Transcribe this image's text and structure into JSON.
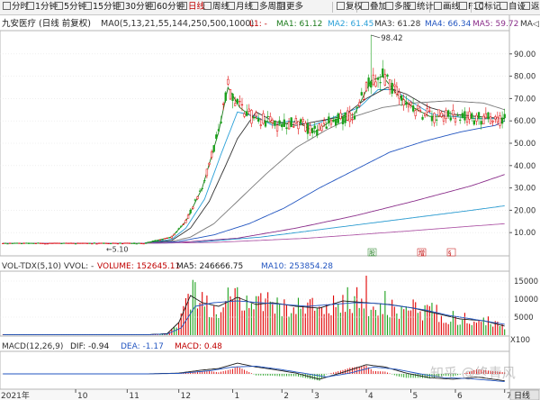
{
  "toolbar": {
    "left": [
      {
        "id": "1m",
        "label": "分时"
      },
      {
        "id": "1min",
        "label": "1分钟"
      },
      {
        "id": "5min",
        "label": "5分钟"
      },
      {
        "id": "15min",
        "label": "15分钟"
      },
      {
        "id": "30min",
        "label": "30分钟"
      },
      {
        "id": "60min",
        "label": "60分钟"
      },
      {
        "id": "day",
        "label": "日线",
        "active": true
      },
      {
        "id": "week",
        "label": "周线"
      },
      {
        "id": "month",
        "label": "月线"
      },
      {
        "id": "multi",
        "label": "多周期"
      },
      {
        "id": "more",
        "label": "更多"
      }
    ],
    "right": [
      {
        "id": "fuquan",
        "label": "复权"
      },
      {
        "id": "overlay",
        "label": "叠加"
      },
      {
        "id": "multistock",
        "label": "多股"
      },
      {
        "id": "stats",
        "label": "统计"
      },
      {
        "id": "draw",
        "label": "画线"
      },
      {
        "id": "f10",
        "label": "F10"
      },
      {
        "id": "mark",
        "label": "标记"
      },
      {
        "id": "custom",
        "label": "自设"
      },
      {
        "id": "back",
        "label": "返回"
      }
    ]
  },
  "price_header": {
    "title": "九安医疗 (日线 前复权)",
    "ma_params": "MA0(5,13,21,55,144,250,500,1000)",
    "legend": [
      {
        "label": "L1: -",
        "color": "#c00000"
      },
      {
        "label": "MA1: 61.12",
        "color": "#1a7a1a"
      },
      {
        "label": "MA2: 61.45",
        "color": "#2aa0d8"
      },
      {
        "label": "MA3: 61.28",
        "color": "#333333"
      },
      {
        "label": "MA4: 66.34",
        "color": "#2255c0"
      },
      {
        "label": "MA5: 59.72",
        "color": "#8a2d8a"
      },
      {
        "label": "MA◁",
        "color": "#333333"
      }
    ]
  },
  "volume_header": {
    "text": "VOL-TDX(5,10)  VVOL: -",
    "legend": [
      {
        "label": "VOLUME: 152645.11",
        "color": "#c00000"
      },
      {
        "label": "MA5: 246666.75",
        "color": "#1a1a1a"
      },
      {
        "label": "MA10: 253854.28",
        "color": "#2255c0"
      }
    ]
  },
  "macd_header": {
    "text": "MACD(12,26,9)",
    "legend": [
      {
        "label": "DIF: -0.94",
        "color": "#1a1a1a"
      },
      {
        "label": "DEA: -1.17",
        "color": "#2255c0"
      },
      {
        "label": "MACD: 0.48",
        "color": "#c00000"
      }
    ]
  },
  "annotations": {
    "high_label": "98.42",
    "low_label": "←5.10",
    "markers": [
      "股",
      "增",
      "§"
    ]
  },
  "vol_multiplier": "X100",
  "time_axis": {
    "year": "2021年",
    "months": [
      "10",
      "11",
      "12",
      "1",
      "2",
      "3",
      "4",
      "5",
      "6",
      "7"
    ],
    "period": "日线"
  },
  "watermark": "知乎 @终青风",
  "colors": {
    "up": "#e00000",
    "down": "#1aa01a",
    "bg": "#ffffff",
    "grid": "#e6e6e6"
  },
  "chart_data": [
    {
      "type": "candlestick",
      "name": "price",
      "y_ticks": [
        10,
        20,
        30,
        40,
        50,
        60,
        70,
        80,
        90
      ],
      "ylim": [
        0,
        100
      ],
      "x_month_ticks": [
        {
          "label": "10",
          "day": 31
        },
        {
          "label": "11",
          "day": 53
        },
        {
          "label": "12",
          "day": 75
        },
        {
          "label": "1",
          "day": 98
        },
        {
          "label": "2",
          "day": 119
        },
        {
          "label": "3",
          "day": 132
        },
        {
          "label": "4",
          "day": 155
        },
        {
          "label": "5",
          "day": 174
        },
        {
          "label": "6",
          "day": 193
        },
        {
          "label": "7",
          "day": 214
        }
      ],
      "series": [
        {
          "name": "MA1",
          "values": [
            [
              0,
              5.2
            ],
            [
              60,
              5.2
            ],
            [
              72,
              8
            ],
            [
              78,
              15
            ],
            [
              85,
              30
            ],
            [
              92,
              55
            ],
            [
              96,
              75
            ],
            [
              101,
              66
            ],
            [
              106,
              62
            ],
            [
              112,
              60
            ],
            [
              118,
              58
            ],
            [
              125,
              60
            ],
            [
              133,
              55
            ],
            [
              140,
              60
            ],
            [
              150,
              63
            ],
            [
              157,
              78
            ],
            [
              162,
              80
            ],
            [
              168,
              72
            ],
            [
              175,
              66
            ],
            [
              182,
              62
            ],
            [
              192,
              62
            ],
            [
              202,
              61
            ],
            [
              214,
              61
            ]
          ]
        },
        {
          "name": "MA2",
          "values": [
            [
              0,
              5.2
            ],
            [
              60,
              5.2
            ],
            [
              72,
              7
            ],
            [
              78,
              12
            ],
            [
              86,
              25
            ],
            [
              93,
              45
            ],
            [
              100,
              64
            ],
            [
              108,
              62
            ],
            [
              115,
              58
            ],
            [
              122,
              60
            ],
            [
              132,
              58
            ],
            [
              142,
              62
            ],
            [
              152,
              66
            ],
            [
              160,
              74
            ],
            [
              167,
              74
            ],
            [
              175,
              68
            ],
            [
              183,
              63
            ],
            [
              192,
              62
            ],
            [
              202,
              61
            ],
            [
              214,
              61
            ]
          ]
        },
        {
          "name": "MA3",
          "values": [
            [
              0,
              5.2
            ],
            [
              60,
              5.2
            ],
            [
              72,
              6.5
            ],
            [
              80,
              12
            ],
            [
              88,
              24
            ],
            [
              95,
              40
            ],
            [
              100,
              52
            ],
            [
              108,
              64
            ],
            [
              115,
              60
            ],
            [
              125,
              58
            ],
            [
              135,
              60
            ],
            [
              145,
              62
            ],
            [
              155,
              70
            ],
            [
              164,
              75
            ],
            [
              172,
              72
            ],
            [
              182,
              66
            ],
            [
              192,
              63
            ],
            [
              202,
              62
            ],
            [
              214,
              61
            ]
          ]
        },
        {
          "name": "MA4",
          "values": [
            [
              0,
              5.2
            ],
            [
              60,
              5.2
            ],
            [
              72,
              6
            ],
            [
              80,
              8
            ],
            [
              90,
              14
            ],
            [
              100,
              24
            ],
            [
              112,
              36
            ],
            [
              125,
              48
            ],
            [
              138,
              56
            ],
            [
              150,
              62
            ],
            [
              162,
              66
            ],
            [
              175,
              68
            ],
            [
              190,
              69
            ],
            [
              205,
              68
            ],
            [
              214,
              65
            ]
          ]
        },
        {
          "name": "MA5",
          "values": [
            [
              0,
              5.2
            ],
            [
              60,
              5.2
            ],
            [
              75,
              6
            ],
            [
              90,
              9
            ],
            [
              105,
              14
            ],
            [
              120,
              21
            ],
            [
              135,
              30
            ],
            [
              150,
              38
            ],
            [
              165,
              46
            ],
            [
              180,
              51
            ],
            [
              195,
              55
            ],
            [
              210,
              58
            ],
            [
              214,
              60
            ]
          ]
        },
        {
          "name": "MA6",
          "values": [
            [
              0,
              5.2
            ],
            [
              60,
              5.2
            ],
            [
              75,
              5.6
            ],
            [
              100,
              7.5
            ],
            [
              125,
              12
            ],
            [
              150,
              17.5
            ],
            [
              175,
              24
            ],
            [
              200,
              31
            ],
            [
              214,
              36
            ]
          ]
        },
        {
          "name": "MA7",
          "values": [
            [
              0,
              5.2
            ],
            [
              60,
              5.2
            ],
            [
              80,
              5.5
            ],
            [
              110,
              8
            ],
            [
              140,
              12
            ],
            [
              170,
              16
            ],
            [
              200,
              20
            ],
            [
              214,
              22
            ]
          ]
        },
        {
          "name": "MA8",
          "values": [
            [
              0,
              5.2
            ],
            [
              60,
              5.2
            ],
            [
              90,
              5.6
            ],
            [
              130,
              7.5
            ],
            [
              170,
              10.5
            ],
            [
              214,
              14
            ]
          ]
        }
      ],
      "high": {
        "day": 157,
        "value": 98.42
      },
      "low": {
        "day": 44,
        "value": 5.1
      }
    },
    {
      "type": "bar",
      "name": "volume",
      "y_ticks": [
        5000,
        10000,
        15000
      ],
      "ylim": [
        0,
        17500
      ],
      "series": [
        {
          "name": "MA5",
          "values": [
            [
              0,
              150
            ],
            [
              62,
              150
            ],
            [
              70,
              400
            ],
            [
              75,
              3500
            ],
            [
              80,
              11000
            ],
            [
              85,
              9000
            ],
            [
              92,
              8000
            ],
            [
              100,
              10500
            ],
            [
              108,
              8500
            ],
            [
              115,
              9000
            ],
            [
              125,
              8000
            ],
            [
              135,
              7500
            ],
            [
              145,
              9500
            ],
            [
              155,
              9000
            ],
            [
              165,
              8500
            ],
            [
              175,
              7500
            ],
            [
              185,
              6000
            ],
            [
              195,
              4500
            ],
            [
              205,
              4000
            ],
            [
              214,
              2500
            ]
          ]
        },
        {
          "name": "MA10",
          "values": [
            [
              0,
              150
            ],
            [
              62,
              150
            ],
            [
              70,
              300
            ],
            [
              76,
              2000
            ],
            [
              82,
              8000
            ],
            [
              90,
              9000
            ],
            [
              100,
              9500
            ],
            [
              110,
              9000
            ],
            [
              120,
              8500
            ],
            [
              130,
              8000
            ],
            [
              140,
              8500
            ],
            [
              150,
              9000
            ],
            [
              160,
              8800
            ],
            [
              170,
              8000
            ],
            [
              180,
              7000
            ],
            [
              190,
              5500
            ],
            [
              200,
              4500
            ],
            [
              214,
              3000
            ]
          ]
        }
      ]
    },
    {
      "type": "bar",
      "name": "macd",
      "ylim": [
        -1,
        1
      ],
      "series": [
        {
          "name": "DIF",
          "values": [
            [
              0,
              0
            ],
            [
              60,
              0
            ],
            [
              75,
              0.05
            ],
            [
              85,
              0.25
            ],
            [
              92,
              0.35
            ],
            [
              100,
              0.7
            ],
            [
              108,
              0.45
            ],
            [
              115,
              0.3
            ],
            [
              125,
              0.05
            ],
            [
              135,
              -0.35
            ],
            [
              145,
              0.1
            ],
            [
              155,
              0.6
            ],
            [
              163,
              0.45
            ],
            [
              172,
              0.05
            ],
            [
              182,
              -0.25
            ],
            [
              192,
              -0.35
            ],
            [
              202,
              -0.2
            ],
            [
              214,
              -0.45
            ]
          ]
        },
        {
          "name": "DEA",
          "values": [
            [
              0,
              0
            ],
            [
              60,
              0
            ],
            [
              75,
              0.03
            ],
            [
              88,
              0.2
            ],
            [
              98,
              0.45
            ],
            [
              108,
              0.5
            ],
            [
              118,
              0.3
            ],
            [
              128,
              0.05
            ],
            [
              138,
              -0.2
            ],
            [
              148,
              0.05
            ],
            [
              158,
              0.45
            ],
            [
              168,
              0.3
            ],
            [
              178,
              0.0
            ],
            [
              188,
              -0.25
            ],
            [
              198,
              -0.3
            ],
            [
              214,
              -0.5
            ]
          ]
        }
      ]
    }
  ]
}
